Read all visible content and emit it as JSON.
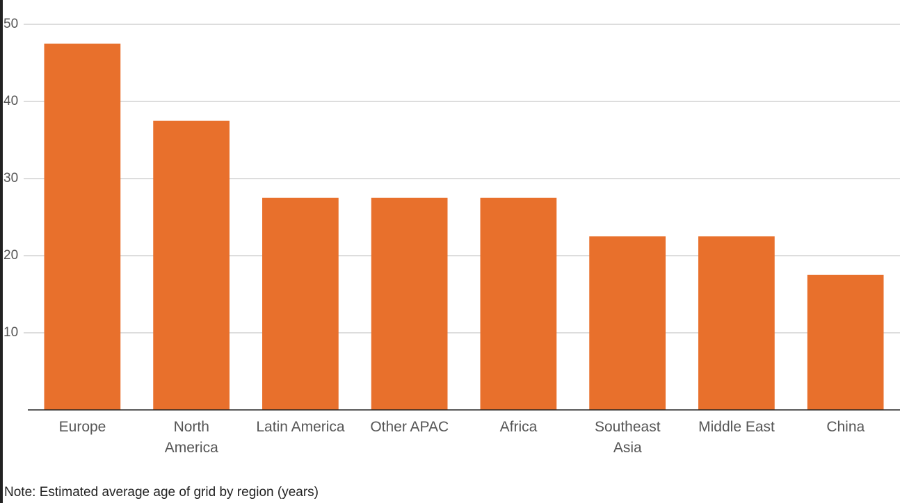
{
  "chart_data": {
    "type": "bar",
    "categories": [
      "Europe",
      "North\nAmerica",
      "Latin America",
      "Other APAC",
      "Africa",
      "Southeast\nAsia",
      "Middle East",
      "China"
    ],
    "values": [
      47.5,
      37.5,
      27.5,
      27.5,
      27.5,
      22.5,
      22.5,
      17.5
    ],
    "color": "#e8702c",
    "ylim": [
      0,
      50
    ],
    "yticks": [
      10,
      20,
      30,
      40,
      50
    ],
    "grid": true,
    "note": "Note: Estimated average age of grid by region (years)"
  }
}
